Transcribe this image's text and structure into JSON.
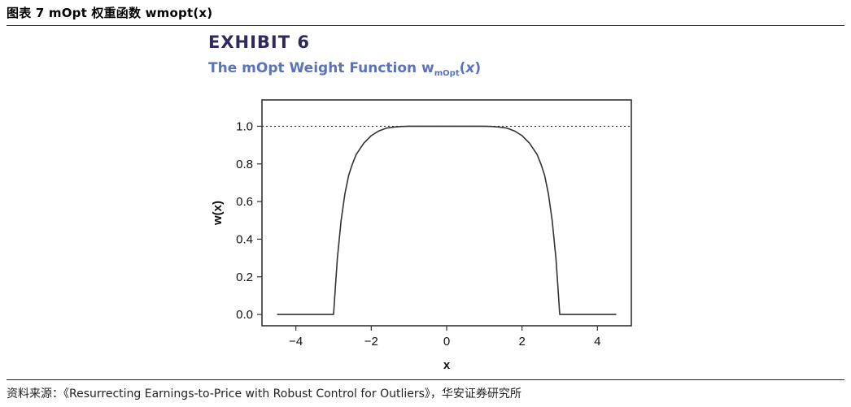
{
  "header": {
    "caption": "图表 7 mOpt 权重函数 wmopt(x)"
  },
  "figure": {
    "exhibit": "EXHIBIT 6",
    "subtitle_main": "The mOpt Weight Function w",
    "subtitle_sub": "mOpt",
    "subtitle_paren_open": "(",
    "subtitle_var": "x",
    "subtitle_paren_close": ")"
  },
  "footer": {
    "source": "资料来源：《Resurrecting Earnings-to-Price with Robust Control for Outliers》，华安证券研究所"
  },
  "chart_data": {
    "type": "line",
    "title": "The mOpt Weight Function wmOpt(x)",
    "xlabel": "x",
    "ylabel": "w(x)",
    "xlim": [
      -4.9,
      4.9
    ],
    "ylim": [
      -0.06,
      1.14
    ],
    "xticks": [
      -4,
      -2,
      0,
      2,
      4
    ],
    "xtick_labels": [
      "−4",
      "−2",
      "0",
      "2",
      "4"
    ],
    "yticks": [
      0.0,
      0.2,
      0.4,
      0.6,
      0.8,
      1.0
    ],
    "ytick_labels": [
      "0.0",
      "0.2",
      "0.4",
      "0.6",
      "0.8",
      "1.0"
    ],
    "reference_line": {
      "y": 1.0,
      "style": "dotted"
    },
    "grid": false,
    "colors": {
      "line": "#333333",
      "frame": "#333333"
    },
    "series": [
      {
        "x": [
          -4.5,
          -3.0,
          -3.0,
          -2.95,
          -2.9,
          -2.8,
          -2.7,
          -2.6,
          -2.5,
          -2.4,
          -2.2,
          -2.0,
          -1.8,
          -1.6,
          -1.4,
          -1.2,
          -1.0,
          0.0,
          1.0,
          1.2,
          1.4,
          1.6,
          1.8,
          2.0,
          2.2,
          2.4,
          2.5,
          2.6,
          2.7,
          2.8,
          2.9,
          2.95,
          3.0,
          3.0,
          4.5
        ],
        "y": [
          0.0,
          0.0,
          0.0,
          0.15,
          0.3,
          0.5,
          0.64,
          0.74,
          0.8,
          0.85,
          0.91,
          0.95,
          0.975,
          0.99,
          0.996,
          0.999,
          1.0,
          1.0,
          1.0,
          0.999,
          0.996,
          0.99,
          0.975,
          0.95,
          0.91,
          0.85,
          0.8,
          0.74,
          0.64,
          0.5,
          0.3,
          0.15,
          0.0,
          0.0,
          0.0
        ]
      }
    ]
  }
}
